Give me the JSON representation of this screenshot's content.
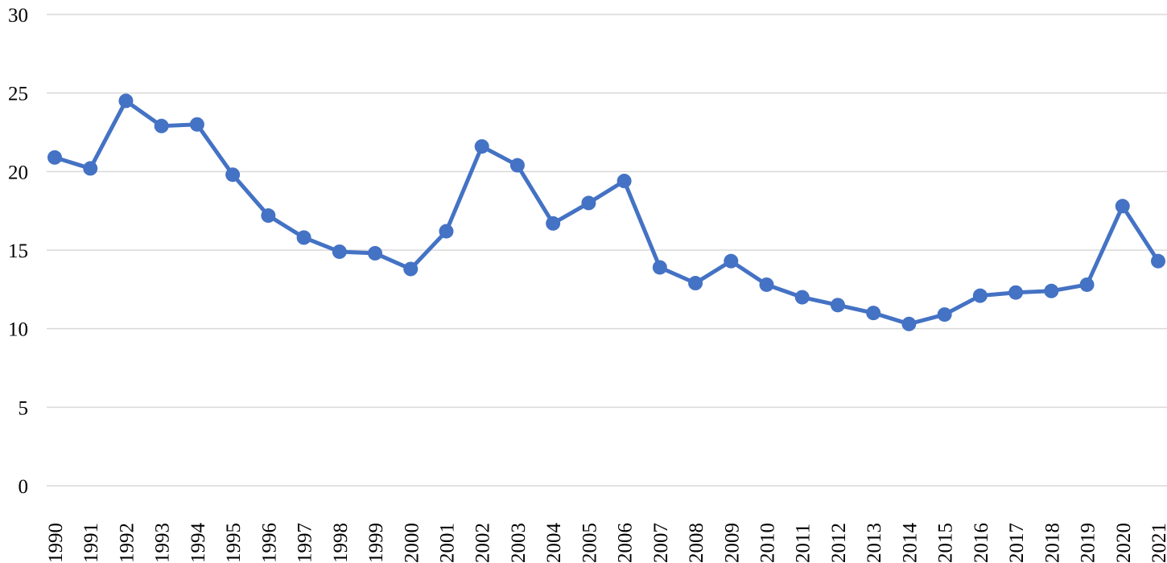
{
  "chart_data": {
    "type": "line",
    "title": "",
    "xlabel": "",
    "ylabel": "",
    "x": [
      "1990",
      "1991",
      "1992",
      "1993",
      "1994",
      "1995",
      "1996",
      "1997",
      "1998",
      "1999",
      "2000",
      "2001",
      "2002",
      "2003",
      "2004",
      "2005",
      "2006",
      "2007",
      "2008",
      "2009",
      "2010",
      "2011",
      "2012",
      "2013",
      "2014",
      "2015",
      "2016",
      "2017",
      "2018",
      "2019",
      "2020",
      "2021"
    ],
    "series": [
      {
        "values": [
          20.9,
          20.2,
          24.5,
          22.9,
          23.0,
          19.8,
          17.2,
          15.8,
          14.9,
          14.8,
          13.8,
          16.2,
          21.6,
          20.4,
          16.7,
          18.0,
          19.4,
          13.9,
          12.9,
          14.3,
          12.8,
          12.0,
          11.5,
          11.0,
          10.3,
          10.9,
          12.1,
          12.3,
          12.4,
          12.8,
          17.8,
          14.3
        ],
        "color": "#4472c4"
      }
    ],
    "ylim": [
      0,
      30
    ],
    "yticks": [
      "0",
      "5",
      "10",
      "15",
      "20",
      "25",
      "30"
    ],
    "grid": "horizontal",
    "legend": "none"
  }
}
